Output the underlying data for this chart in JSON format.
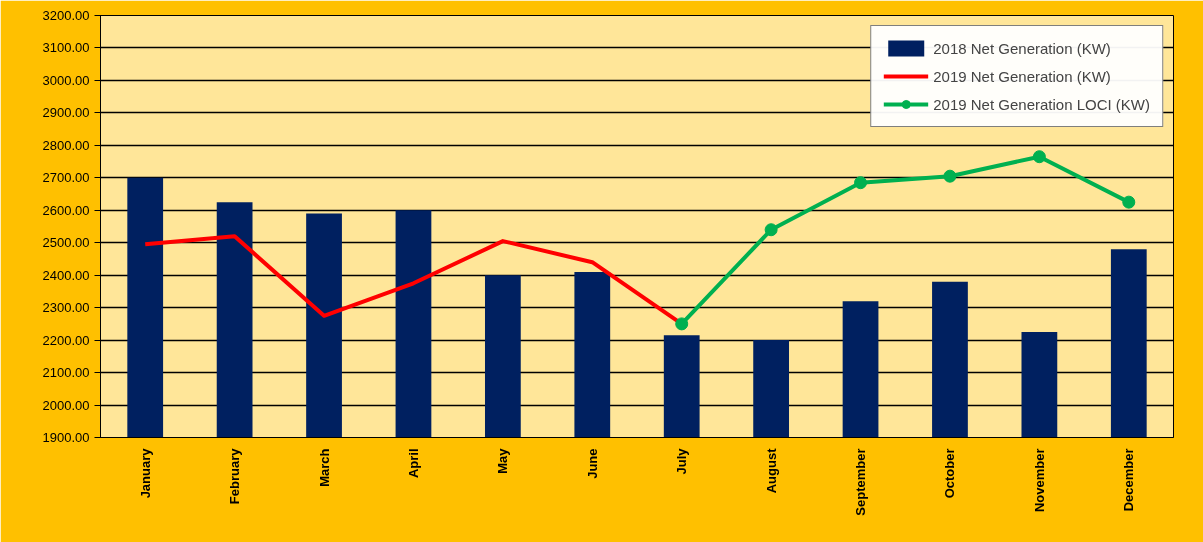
{
  "chart_data": {
    "type": "bar",
    "categories": [
      "January",
      "February",
      "March",
      "April",
      "May",
      "June",
      "July",
      "August",
      "September",
      "October",
      "November",
      "December"
    ],
    "series": [
      {
        "name": "2018 Net Generation (KW)",
        "color": "#002060",
        "values": [
          2700,
          2625,
          2590,
          2600,
          2400,
          2410,
          2215,
          2200,
          2320,
          2380,
          2225,
          2480
        ]
      },
      {
        "name": "2019 Net Generation (KW)",
        "type": "line",
        "color": "#ff0000",
        "marker": "none",
        "values": [
          2495,
          2520,
          2275,
          2375,
          2505,
          2440,
          2250,
          null,
          null,
          null,
          null,
          null
        ]
      },
      {
        "name": "2019 Net Generation LOCI (KW)",
        "type": "line",
        "color": "#00b050",
        "marker": "circle",
        "values": [
          null,
          null,
          null,
          null,
          null,
          null,
          2250,
          2540,
          2685,
          2705,
          2765,
          2625
        ]
      }
    ],
    "ylim": [
      1900,
      3200
    ],
    "yticks": [
      {
        "value": 1900,
        "label": "1900.00"
      },
      {
        "value": 2000,
        "label": "2000.00"
      },
      {
        "value": 2100,
        "label": "2100.00"
      },
      {
        "value": 2200,
        "label": "2200.00"
      },
      {
        "value": 2300,
        "label": "2300.00"
      },
      {
        "value": 2400,
        "label": "2400.00"
      },
      {
        "value": 2500,
        "label": "2500.00"
      },
      {
        "value": 2600,
        "label": "2600.00"
      },
      {
        "value": 2700,
        "label": "2700.00"
      },
      {
        "value": 2800,
        "label": "2800.00"
      },
      {
        "value": 2900,
        "label": "2900.00"
      },
      {
        "value": 3000,
        "label": "3000.00"
      },
      {
        "value": 3100,
        "label": "3100.00"
      },
      {
        "value": 3200,
        "label": "3200.00"
      }
    ],
    "grid": "y",
    "legend": "top right"
  }
}
